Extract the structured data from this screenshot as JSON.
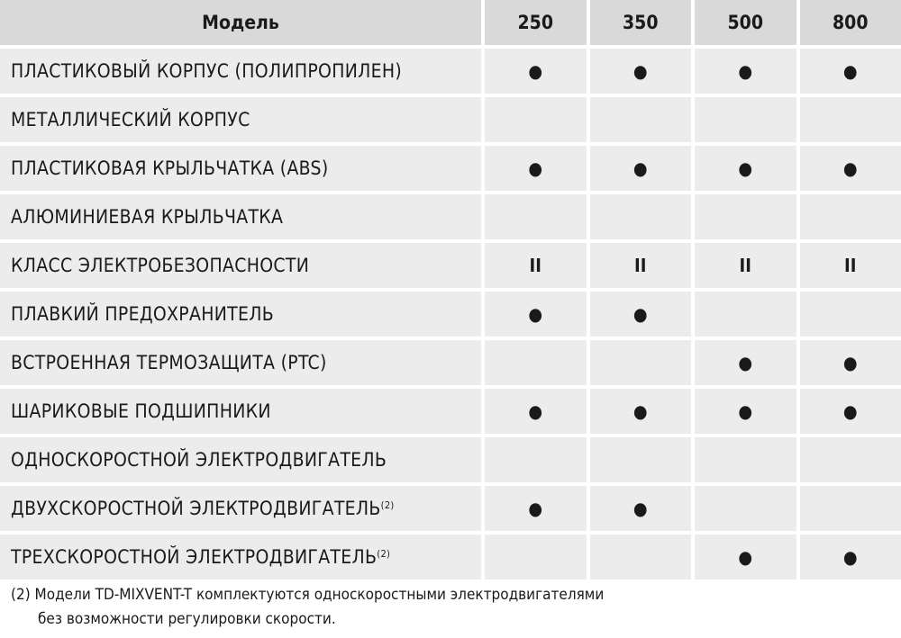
{
  "table": {
    "headers": [
      "Модель",
      "250",
      "350",
      "500",
      "800"
    ],
    "rows": [
      {
        "name": "ПЛАСТИКОВЫЙ КОРПУС (ПОЛИПРОПИЛЕН)",
        "sup": "",
        "values": [
          "●",
          "●",
          "●",
          "●"
        ]
      },
      {
        "name": "МЕТАЛЛИЧЕСКИЙ КОРПУС",
        "sup": "",
        "values": [
          "",
          "",
          "",
          ""
        ]
      },
      {
        "name": "ПЛАСТИКОВАЯ КРЫЛЬЧАТКА (ABS)",
        "sup": "",
        "values": [
          "●",
          "●",
          "●",
          "●"
        ]
      },
      {
        "name": "АЛЮМИНИЕВАЯ КРЫЛЬЧАТКА",
        "sup": "",
        "values": [
          "",
          "",
          "",
          ""
        ]
      },
      {
        "name": "КЛАСС ЭЛЕКТРОБЕЗОПАСНОСТИ",
        "sup": "",
        "values": [
          "II",
          "II",
          "II",
          "II"
        ]
      },
      {
        "name": "ПЛАВКИЙ ПРЕДОХРАНИТЕЛЬ",
        "sup": "",
        "values": [
          "●",
          "●",
          "",
          ""
        ]
      },
      {
        "name": "ВСТРОЕННАЯ ТЕРМОЗАЩИТА (PTC)",
        "sup": "",
        "values": [
          "",
          "",
          "●",
          "●"
        ]
      },
      {
        "name": "ШАРИКОВЫЕ ПОДШИПНИКИ",
        "sup": "",
        "values": [
          "●",
          "●",
          "●",
          "●"
        ]
      },
      {
        "name": "ОДНОСКОРОСТНОЙ ЭЛЕКТРОДВИГАТЕЛЬ",
        "sup": "",
        "values": [
          "",
          "",
          "",
          ""
        ]
      },
      {
        "name": "ДВУХСКОРОСТНОЙ ЭЛЕКТРОДВИГАТЕЛЬ",
        "sup": "(2)",
        "values": [
          "●",
          "●",
          "",
          ""
        ]
      },
      {
        "name": "ТРЕХСКОРОСТНОЙ ЭЛЕКТРОДВИГАТЕЛЬ",
        "sup": "(2)",
        "values": [
          "",
          "",
          "●",
          "●"
        ]
      }
    ]
  },
  "footnote": {
    "line1": "(2) Модели TD-MIXVENT-T комплектуются односкоростными электродвигателями",
    "line2": "без возможности регулировки скорости."
  },
  "colors": {
    "header_bg": "#d9d9d9",
    "cell_bg": "#ececec"
  }
}
